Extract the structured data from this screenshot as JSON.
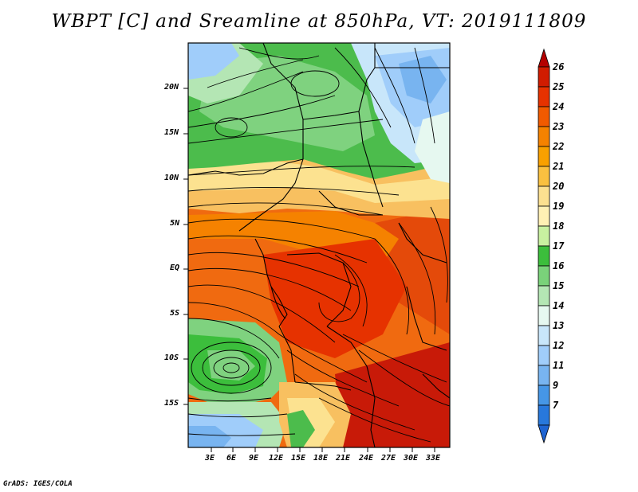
{
  "title": "WBPT [C] and Sreamline at 850hPa, VT: 2019111809",
  "footer": "GrADS: IGES/COLA",
  "map": {
    "variable": "WBPT [C]",
    "level": "850hPa",
    "valid_time": "2019111809",
    "lat_ticks": [
      "20N",
      "15N",
      "10N",
      "5N",
      "EQ",
      "5S",
      "10S",
      "15S"
    ],
    "lon_ticks": [
      "3E",
      "6E",
      "9E",
      "12E",
      "15E",
      "18E",
      "21E",
      "24E",
      "27E",
      "30E",
      "33E"
    ],
    "features": [
      "wbpt-shading",
      "streamlines",
      "country-borders",
      "coastlines"
    ]
  },
  "colorbar": {
    "labels": [
      "26",
      "25",
      "24",
      "23",
      "22",
      "21",
      "20",
      "19",
      "18",
      "17",
      "16",
      "15",
      "14",
      "13",
      "12",
      "11",
      "9",
      "7"
    ],
    "colors": [
      "#b40000",
      "#d01c00",
      "#e63200",
      "#f05a00",
      "#f58200",
      "#f8a000",
      "#fac040",
      "#fce090",
      "#fff0b4",
      "#c8f0a0",
      "#3cbe3c",
      "#7ad27a",
      "#b4e6b4",
      "#e6f8f0",
      "#c8e6fa",
      "#a0cdfa",
      "#78b4f0",
      "#4696e6",
      "#2878dc",
      "#1e64d2"
    ]
  }
}
